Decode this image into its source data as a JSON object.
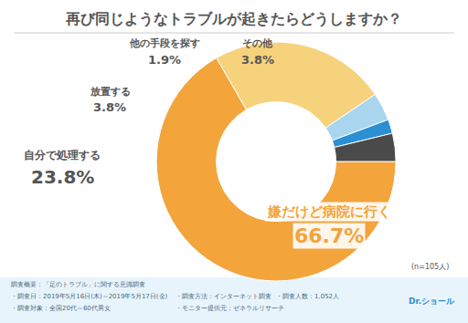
{
  "chart_data": {
    "type": "donut",
    "title": "再び同じようなトラブルが起きたらどうしますか？",
    "categories": [
      "嫌だけど病院に行く",
      "自分で処理する",
      "放置する",
      "他の手段を探す",
      "その他"
    ],
    "values": [
      66.7,
      23.8,
      3.8,
      1.9,
      3.8
    ],
    "value_labels": [
      "66.7%",
      "23.8%",
      "3.8%",
      "1.9%",
      "3.8%"
    ],
    "colors": [
      "#f3a43b",
      "#f6d27c",
      "#a9d6ee",
      "#2b8fd3",
      "#4a4a4a"
    ],
    "data_labels": true,
    "note": "(n=105人)",
    "footnotes": [
      [
        "調査概要：「足のトラブル」に関する意識調査"
      ],
      [
        "・調査日：2019年5月16日(木)～2019年5月17日(金)",
        "・調査方法：インターネット調査",
        "・調査人数：1,052人"
      ],
      [
        "・調査対象：全国20代～60代男女",
        "・モニター提供元：ゼネラルリサーチ"
      ]
    ],
    "logo": "Dr.ショール"
  }
}
